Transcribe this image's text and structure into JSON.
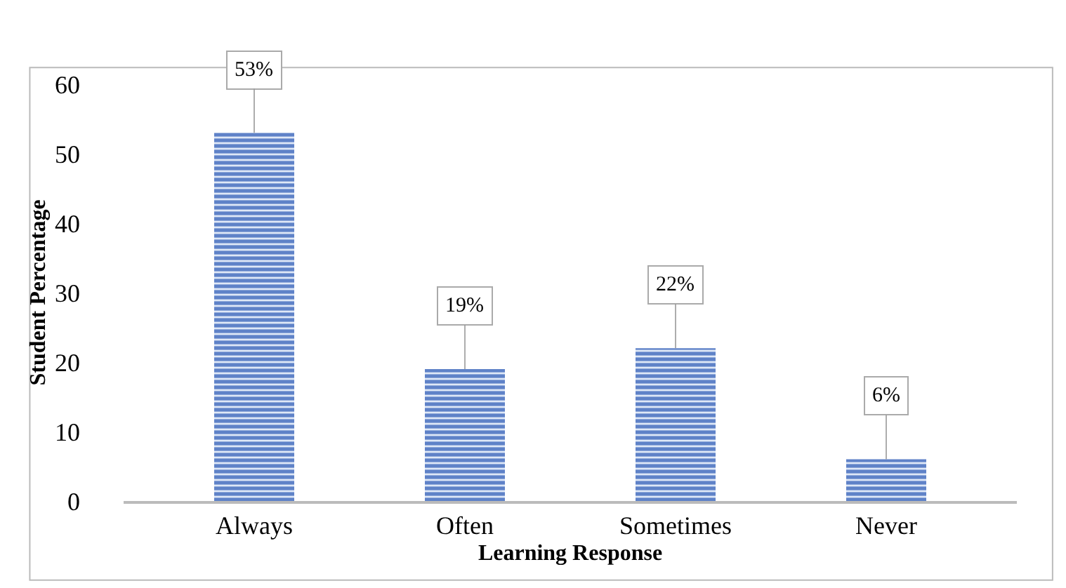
{
  "chart_data": {
    "type": "bar",
    "xlabel": "Learning Response",
    "ylabel": "Student Percentage",
    "categories": [
      "Always",
      "Often",
      "Sometimes",
      "Never"
    ],
    "values": [
      53,
      19,
      22,
      6
    ],
    "color": "#5f82c8",
    "ylim": [
      0,
      60
    ],
    "yticks": [
      0,
      10,
      20,
      30,
      40,
      50,
      60
    ],
    "value_labels": [
      "53%",
      "19%",
      "22%",
      "6%"
    ],
    "grid": false,
    "legend": false
  }
}
